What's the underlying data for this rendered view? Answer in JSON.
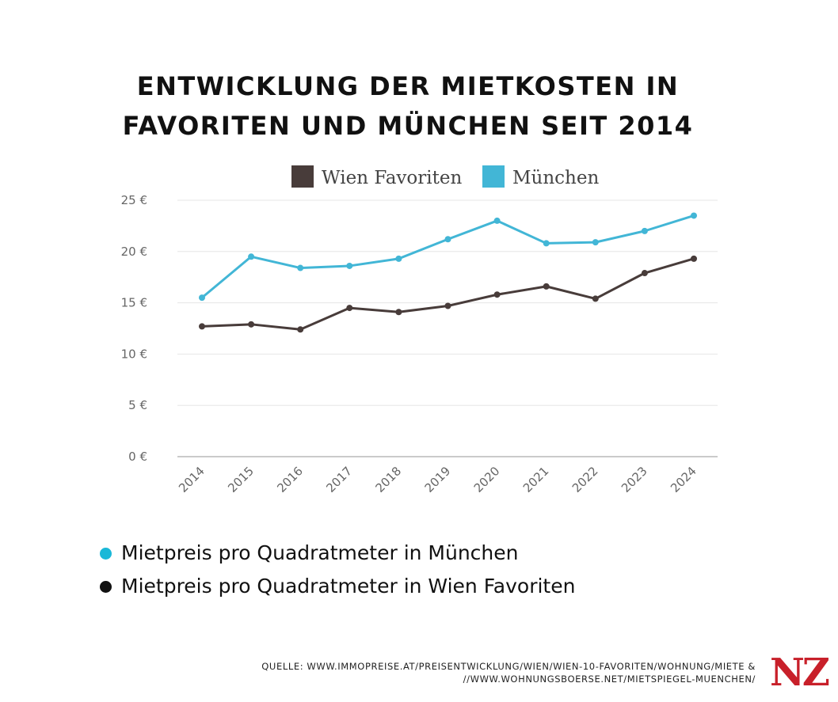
{
  "title_lines": [
    "ENTWICKLUNG DER MIETKOSTEN IN",
    "FAVORITEN UND MÜNCHEN SEIT 2014"
  ],
  "colors": {
    "wien": "#483c3a",
    "muenchen": "#42b6d6",
    "grid": "#e6e6e6",
    "axis": "#aaaaaa",
    "note_dot_muenchen": "#1ab8d8",
    "note_dot_wien": "#111111",
    "logo": "#c8202a"
  },
  "chart_data": {
    "type": "line",
    "title": "ENTWICKLUNG DER MIETKOSTEN IN FAVORITEN UND MÜNCHEN SEIT 2014",
    "categories": [
      "2014",
      "2015",
      "2016",
      "2017",
      "2018",
      "2019",
      "2020",
      "2021",
      "2022",
      "2023",
      "2024"
    ],
    "x": [
      2014,
      2015,
      2016,
      2017,
      2018,
      2019,
      2020,
      2021,
      2022,
      2023,
      2024
    ],
    "yticks": [
      "0 €",
      "5 €",
      "10 €",
      "15 €",
      "20 €",
      "25 €"
    ],
    "ylim": [
      0,
      25
    ],
    "grid": true,
    "legend_position": "top-center",
    "series": [
      {
        "name": "Wien Favoriten",
        "color": "#483c3a",
        "values": [
          12.7,
          12.9,
          12.4,
          14.5,
          14.1,
          14.7,
          15.8,
          16.6,
          15.4,
          17.9,
          19.3
        ]
      },
      {
        "name": "München",
        "color": "#42b6d6",
        "values": [
          15.5,
          19.5,
          18.4,
          18.6,
          19.3,
          21.2,
          23.0,
          20.8,
          20.9,
          22.0,
          23.5
        ]
      }
    ]
  },
  "notes": [
    {
      "text": "Mietpreis pro Quadratmeter in München",
      "dot": "#1ab8d8"
    },
    {
      "text": "Mietpreis pro Quadratmeter in Wien Favoriten",
      "dot": "#111111"
    }
  ],
  "source_lines": [
    "QUELLE: WWW.IMMOPREISE.AT/PREISENTWICKLUNG/WIEN/WIEN-10-FAVORITEN/WOHNUNG/MIETE &",
    "//WWW.WOHNUNGSBOERSE.NET/MIETSPIEGEL-MUENCHEN/"
  ],
  "logo_text": "NZ"
}
